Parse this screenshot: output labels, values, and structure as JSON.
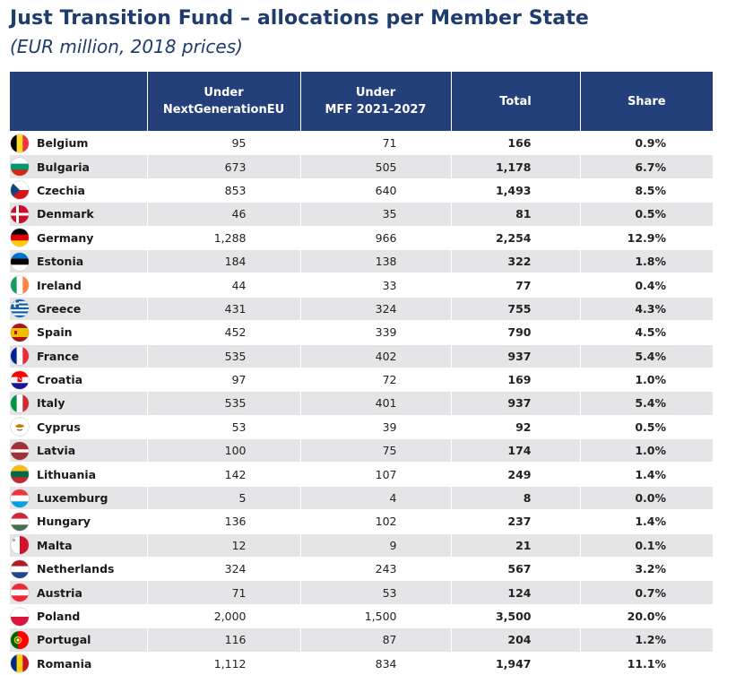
{
  "title": "Just Transition Fund – allocations per Member State",
  "subtitle": "(EUR million, 2018 prices)",
  "headers": {
    "country": "",
    "ngeu_line1": "Under",
    "ngeu_line2": "NextGenerationEU",
    "mff_line1": "Under",
    "mff_line2": "MFF 2021-2027",
    "total": "Total",
    "share": "Share"
  },
  "rows": [
    {
      "country": "Belgium",
      "flag": "belgium-flag-icon",
      "ngeu": "95",
      "mff": "71",
      "total": "166",
      "share": "0.9%"
    },
    {
      "country": "Bulgaria",
      "flag": "bulgaria-flag-icon",
      "ngeu": "673",
      "mff": "505",
      "total": "1,178",
      "share": "6.7%"
    },
    {
      "country": "Czechia",
      "flag": "czechia-flag-icon",
      "ngeu": "853",
      "mff": "640",
      "total": "1,493",
      "share": "8.5%"
    },
    {
      "country": "Denmark",
      "flag": "denmark-flag-icon",
      "ngeu": "46",
      "mff": "35",
      "total": "81",
      "share": "0.5%"
    },
    {
      "country": "Germany",
      "flag": "germany-flag-icon",
      "ngeu": "1,288",
      "mff": "966",
      "total": "2,254",
      "share": "12.9%"
    },
    {
      "country": "Estonia",
      "flag": "estonia-flag-icon",
      "ngeu": "184",
      "mff": "138",
      "total": "322",
      "share": "1.8%"
    },
    {
      "country": "Ireland",
      "flag": "ireland-flag-icon",
      "ngeu": "44",
      "mff": "33",
      "total": "77",
      "share": "0.4%"
    },
    {
      "country": "Greece",
      "flag": "greece-flag-icon",
      "ngeu": "431",
      "mff": "324",
      "total": "755",
      "share": "4.3%"
    },
    {
      "country": "Spain",
      "flag": "spain-flag-icon",
      "ngeu": "452",
      "mff": "339",
      "total": "790",
      "share": "4.5%"
    },
    {
      "country": "France",
      "flag": "france-flag-icon",
      "ngeu": "535",
      "mff": "402",
      "total": "937",
      "share": "5.4%"
    },
    {
      "country": "Croatia",
      "flag": "croatia-flag-icon",
      "ngeu": "97",
      "mff": "72",
      "total": "169",
      "share": "1.0%"
    },
    {
      "country": "Italy",
      "flag": "italy-flag-icon",
      "ngeu": "535",
      "mff": "401",
      "total": "937",
      "share": "5.4%"
    },
    {
      "country": "Cyprus",
      "flag": "cyprus-flag-icon",
      "ngeu": "53",
      "mff": "39",
      "total": "92",
      "share": "0.5%"
    },
    {
      "country": "Latvia",
      "flag": "latvia-flag-icon",
      "ngeu": "100",
      "mff": "75",
      "total": "174",
      "share": "1.0%"
    },
    {
      "country": "Lithuania",
      "flag": "lithuania-flag-icon",
      "ngeu": "142",
      "mff": "107",
      "total": "249",
      "share": "1.4%"
    },
    {
      "country": "Luxemburg",
      "flag": "luxembourg-flag-icon",
      "ngeu": "5",
      "mff": "4",
      "total": "8",
      "share": "0.0%"
    },
    {
      "country": "Hungary",
      "flag": "hungary-flag-icon",
      "ngeu": "136",
      "mff": "102",
      "total": "237",
      "share": "1.4%"
    },
    {
      "country": "Malta",
      "flag": "malta-flag-icon",
      "ngeu": "12",
      "mff": "9",
      "total": "21",
      "share": "0.1%"
    },
    {
      "country": "Netherlands",
      "flag": "netherlands-flag-icon",
      "ngeu": "324",
      "mff": "243",
      "total": "567",
      "share": "3.2%"
    },
    {
      "country": "Austria",
      "flag": "austria-flag-icon",
      "ngeu": "71",
      "mff": "53",
      "total": "124",
      "share": "0.7%"
    },
    {
      "country": "Poland",
      "flag": "poland-flag-icon",
      "ngeu": "2,000",
      "mff": "1,500",
      "total": "3,500",
      "share": "20.0%"
    },
    {
      "country": "Portugal",
      "flag": "portugal-flag-icon",
      "ngeu": "116",
      "mff": "87",
      "total": "204",
      "share": "1.2%"
    },
    {
      "country": "Romania",
      "flag": "romania-flag-icon",
      "ngeu": "1,112",
      "mff": "834",
      "total": "1,947",
      "share": "11.1%"
    }
  ],
  "flag_colors": {
    "belgium": [
      "#000000",
      "#FDDA24",
      "#EF3340"
    ],
    "bulgaria": [
      "#FFFFFF",
      "#00966E",
      "#D62612"
    ],
    "czechia": [
      "#FFFFFF",
      "#D7141A",
      "#11457E"
    ],
    "denmark": [
      "#C8102E",
      "#FFFFFF"
    ],
    "germany": [
      "#000000",
      "#DD0000",
      "#FFCE00"
    ],
    "estonia": [
      "#0072CE",
      "#000000",
      "#FFFFFF"
    ],
    "ireland": [
      "#169B62",
      "#FFFFFF",
      "#FF883E"
    ],
    "greece": [
      "#0D5EAF",
      "#FFFFFF"
    ],
    "spain": [
      "#AA151B",
      "#F1BF00"
    ],
    "france": [
      "#002395",
      "#FFFFFF",
      "#ED2939"
    ],
    "croatia": [
      "#FF0000",
      "#FFFFFF",
      "#171796"
    ],
    "italy": [
      "#009246",
      "#FFFFFF",
      "#CE2B37"
    ],
    "cyprus": [
      "#FFFFFF",
      "#D57800",
      "#4E5B31"
    ],
    "latvia": [
      "#9E3039",
      "#FFFFFF"
    ],
    "lithuania": [
      "#FDB913",
      "#006A44",
      "#C1272D"
    ],
    "luxembourg": [
      "#EF3340",
      "#FFFFFF",
      "#00A3E0"
    ],
    "hungary": [
      "#CE2939",
      "#FFFFFF",
      "#477050"
    ],
    "malta": [
      "#FFFFFF",
      "#CF142B"
    ],
    "netherlands": [
      "#AE1C28",
      "#FFFFFF",
      "#21468B"
    ],
    "austria": [
      "#ED2939",
      "#FFFFFF"
    ],
    "poland": [
      "#FFFFFF",
      "#DC143C"
    ],
    "portugal": [
      "#006600",
      "#FF0000",
      "#FFCC00"
    ],
    "romania": [
      "#002B7F",
      "#FCD116",
      "#CE1126"
    ]
  }
}
